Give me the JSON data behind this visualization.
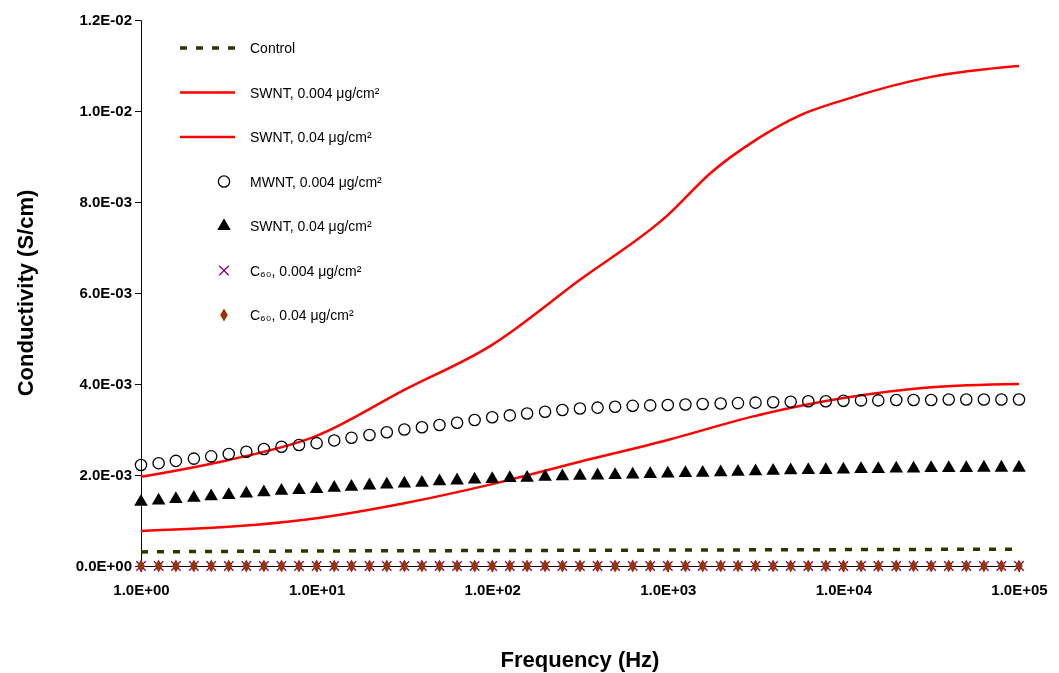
{
  "chart_data": {
    "type": "line",
    "xlabel": "Frequency (Hz)",
    "ylabel": "Conductivity (S/cm)",
    "log": "x",
    "grid": false,
    "legend": "top left",
    "xlim": [
      1,
      100000
    ],
    "xticks": [
      {
        "value": 1,
        "label": "1.0E+00"
      },
      {
        "value": 10,
        "label": "1.0E+01"
      },
      {
        "value": 100,
        "label": "1.0E+02"
      },
      {
        "value": 1000,
        "label": "1.0E+03"
      },
      {
        "value": 10000,
        "label": "1.0E+04"
      },
      {
        "value": 100000,
        "label": "1.0E+05"
      }
    ],
    "ylim": [
      0,
      0.012
    ],
    "yticks": [
      {
        "value": 0,
        "label": "0.0E+00"
      },
      {
        "value": 0.002,
        "label": "2.0E-03"
      },
      {
        "value": 0.004,
        "label": "4.0E-03"
      },
      {
        "value": 0.006,
        "label": "6.0E-03"
      },
      {
        "value": 0.008,
        "label": "8.0E-03"
      },
      {
        "value": 0.01,
        "label": "1.0E-02"
      },
      {
        "value": 0.012,
        "label": "1.2E-02"
      }
    ],
    "x": [
      1,
      1.26,
      1.58,
      2,
      2.51,
      3.16,
      3.98,
      5.01,
      6.31,
      7.94,
      10,
      12.6,
      15.8,
      20,
      25.1,
      31.6,
      39.8,
      50.1,
      63.1,
      79.4,
      100,
      126,
      158,
      200,
      251,
      316,
      398,
      501,
      631,
      794,
      1000,
      1260,
      1580,
      2000,
      2510,
      3160,
      3980,
      5010,
      6310,
      7940,
      10000,
      12600,
      15800,
      20000,
      25100,
      31600,
      39800,
      50100,
      63100,
      79400,
      100000
    ],
    "series": [
      {
        "name": "Control",
        "line_style": "dashed",
        "marker": "none",
        "color": "#333300",
        "x": [
          1,
          10,
          100,
          1000,
          10000,
          100000
        ],
        "values": [
          0.00031,
          0.00033,
          0.00034,
          0.00035,
          0.00036,
          0.00037
        ]
      },
      {
        "name": "SWNT, 0.004 μg/cm²",
        "line_style": "solid",
        "marker": "none",
        "color": "#ff0000",
        "x": [
          1,
          3.16,
          10,
          31.6,
          100,
          316,
          1000,
          3160,
          10000,
          31600,
          100000
        ],
        "values": [
          0.00077,
          0.00086,
          0.00105,
          0.00138,
          0.0018,
          0.00229,
          0.00277,
          0.0033,
          0.00369,
          0.00393,
          0.004
        ]
      },
      {
        "name": "SWNT, 0.04 μg/cm²",
        "line_style": "solid",
        "marker": "none",
        "color": "#ff0000",
        "x": [
          1,
          3.16,
          10,
          31.6,
          100,
          316,
          1000,
          1780,
          3160,
          5620,
          10000,
          31600,
          100000
        ],
        "values": [
          0.00196,
          0.00233,
          0.00286,
          0.00387,
          0.00486,
          0.00629,
          0.00771,
          0.00866,
          0.00936,
          0.0099,
          0.01024,
          0.01075,
          0.01099
        ]
      },
      {
        "name": "MWNT, 0.004 μg/cm²",
        "type": "scatter",
        "marker": "circle",
        "color": "#000000",
        "values": [
          0.00222,
          0.00226,
          0.00231,
          0.00236,
          0.00241,
          0.00246,
          0.00251,
          0.00257,
          0.00262,
          0.00266,
          0.0027,
          0.00276,
          0.00282,
          0.00288,
          0.00294,
          0.003,
          0.00305,
          0.0031,
          0.00315,
          0.00321,
          0.00327,
          0.00331,
          0.00335,
          0.00339,
          0.00343,
          0.00346,
          0.00348,
          0.0035,
          0.00352,
          0.00353,
          0.00354,
          0.00355,
          0.00356,
          0.00357,
          0.00358,
          0.00359,
          0.0036,
          0.00361,
          0.00362,
          0.00362,
          0.00363,
          0.00364,
          0.00364,
          0.00365,
          0.00365,
          0.00365,
          0.00366,
          0.00366,
          0.00366,
          0.00366,
          0.00366
        ]
      },
      {
        "name": "SWNT, 0.04 μg/cm²",
        "type": "scatter",
        "marker": "triangle",
        "color": "#000000",
        "values": [
          0.00141,
          0.00144,
          0.00147,
          0.0015,
          0.00153,
          0.00156,
          0.00159,
          0.00162,
          0.00165,
          0.00167,
          0.00169,
          0.00172,
          0.00174,
          0.00177,
          0.00179,
          0.00181,
          0.00183,
          0.00186,
          0.00188,
          0.0019,
          0.00191,
          0.00193,
          0.00194,
          0.00196,
          0.00197,
          0.00198,
          0.00199,
          0.002,
          0.00201,
          0.00202,
          0.00203,
          0.00204,
          0.00205,
          0.00206,
          0.00207,
          0.00208,
          0.00209,
          0.0021,
          0.00211,
          0.00211,
          0.00212,
          0.00213,
          0.00213,
          0.00214,
          0.00214,
          0.00215,
          0.00215,
          0.00215,
          0.00216,
          0.00216,
          0.00216
        ]
      },
      {
        "name": "C₆₀, 0.004 μg/cm²",
        "type": "scatter",
        "marker": "cross",
        "color": "#800080",
        "values": [
          0,
          0,
          0,
          0,
          0,
          0,
          0,
          0,
          0,
          0,
          0,
          0,
          0,
          0,
          0,
          0,
          0,
          0,
          0,
          0,
          0,
          0,
          0,
          0,
          0,
          0,
          0,
          0,
          0,
          0,
          0,
          0,
          0,
          0,
          0,
          0,
          0,
          0,
          0,
          0,
          0,
          0,
          0,
          0,
          0,
          0,
          0,
          0,
          0,
          0,
          0
        ]
      },
      {
        "name": "C₆₀, 0.04 μg/cm²",
        "type": "scatter",
        "marker": "diamond",
        "color": "#993300",
        "values": [
          0,
          0,
          0,
          0,
          0,
          0,
          0,
          0,
          0,
          0,
          0,
          0,
          0,
          0,
          0,
          0,
          0,
          0,
          0,
          0,
          0,
          0,
          0,
          0,
          0,
          0,
          0,
          0,
          0,
          0,
          0,
          0,
          0,
          0,
          0,
          0,
          0,
          0,
          0,
          0,
          0,
          0,
          0,
          0,
          0,
          0,
          0,
          0,
          0,
          0,
          0
        ]
      }
    ]
  }
}
